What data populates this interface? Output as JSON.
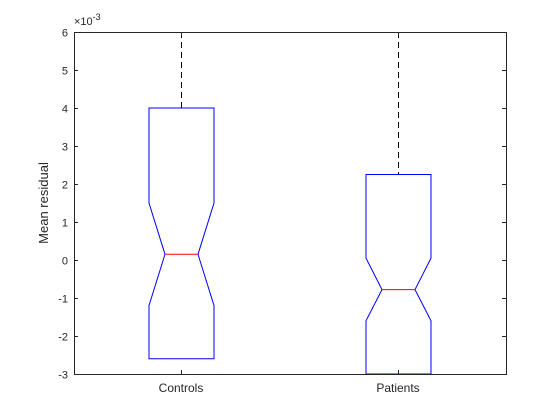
{
  "chart_data": {
    "type": "box",
    "title": "",
    "xlabel": "",
    "ylabel": "Mean residual",
    "y_exponent_label": "×10",
    "y_exponent_power": "-3",
    "ylim": [
      -3,
      6
    ],
    "yticks": [
      {
        "value": -3,
        "label": "-3"
      },
      {
        "value": -2,
        "label": "-2"
      },
      {
        "value": -1,
        "label": "-1"
      },
      {
        "value": 0,
        "label": "0"
      },
      {
        "value": 1,
        "label": "1"
      },
      {
        "value": 2,
        "label": "2"
      },
      {
        "value": 3,
        "label": "3"
      },
      {
        "value": 4,
        "label": "4"
      },
      {
        "value": 5,
        "label": "5"
      },
      {
        "value": 6,
        "label": "6"
      }
    ],
    "categories": [
      "Controls",
      "Patients"
    ],
    "boxes": [
      {
        "category": "Controls",
        "q1": -2.6,
        "median": 0.15,
        "q3": 4.0,
        "notch_low": -1.2,
        "notch_high": 1.5,
        "whisker_low": -2.6,
        "whisker_high": 6.0
      },
      {
        "category": "Patients",
        "q1": -3.0,
        "median": -0.78,
        "q3": 2.25,
        "notch_low": -1.6,
        "notch_high": 0.05,
        "whisker_low": -3.0,
        "whisker_high": 6.0
      }
    ],
    "box_color": "#0000ff",
    "median_color": "#ff0000",
    "whisker_color": "#000000",
    "grid": false,
    "notched": true
  }
}
